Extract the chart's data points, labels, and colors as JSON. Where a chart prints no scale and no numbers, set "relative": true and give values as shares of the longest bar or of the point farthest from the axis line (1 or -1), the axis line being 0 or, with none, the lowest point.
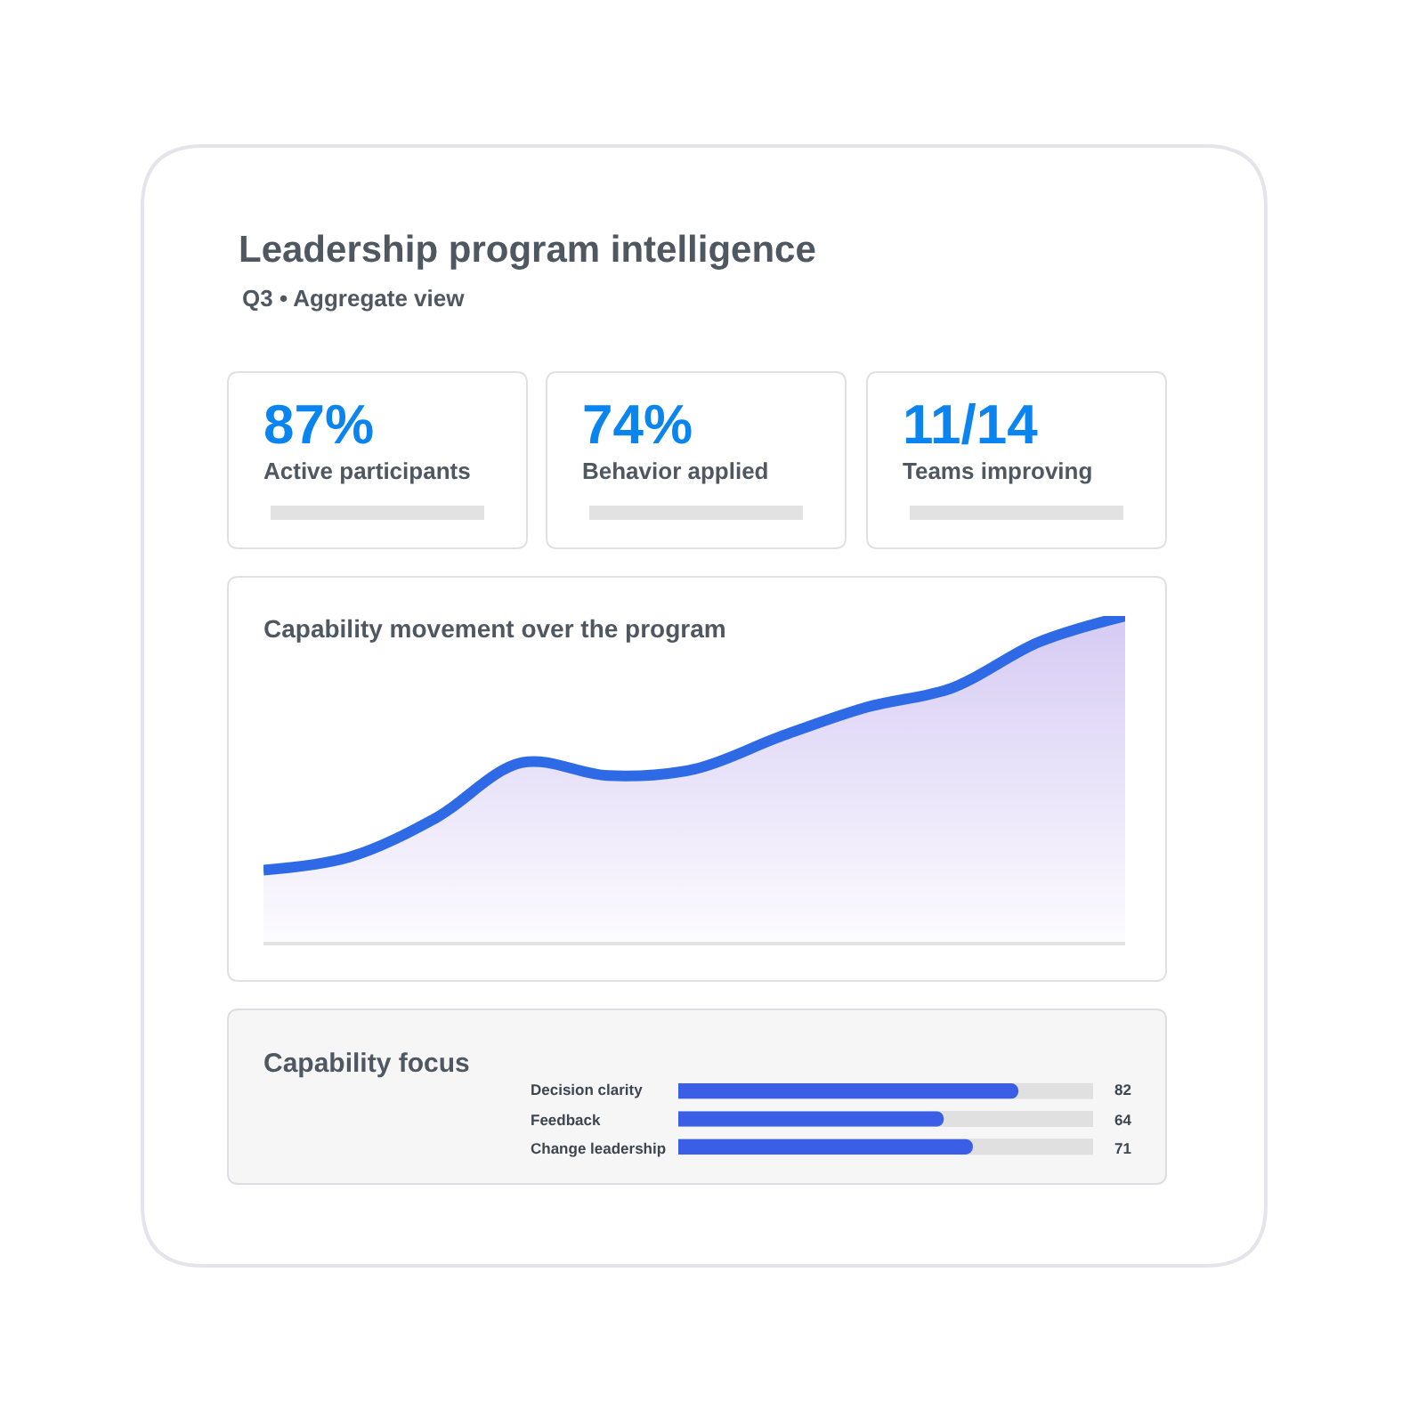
{
  "chart_data": [
    {
      "type": "other",
      "title": "Leadership program intelligence",
      "subtitle": "Q3 • Aggregate view",
      "annotations": [
        "87%",
        "Active participants",
        "74%",
        "Behavior applied",
        "11/14",
        "Teams improving"
      ]
    },
    {
      "type": "area",
      "title": "Capability movement over the program",
      "relative": true,
      "color": "#2f6ae6",
      "categories": [
        null,
        null,
        null,
        null,
        null,
        null,
        null,
        null,
        null,
        null,
        null
      ],
      "values": [
        0.22,
        0.26,
        0.38,
        0.55,
        0.51,
        0.53,
        0.63,
        0.72,
        0.78,
        0.92,
        1.0
      ],
      "marker": "none",
      "line_style": "solid"
    },
    {
      "type": "bar",
      "orientation": "horizontal",
      "title": "Capability focus",
      "color": "#3a5ee6",
      "categories": [
        "Decision clarity",
        "Feedback",
        "Change leadership"
      ],
      "values": [
        82,
        64,
        71
      ],
      "xlim": [
        0,
        100
      ],
      "data_labels": true
    }
  ]
}
